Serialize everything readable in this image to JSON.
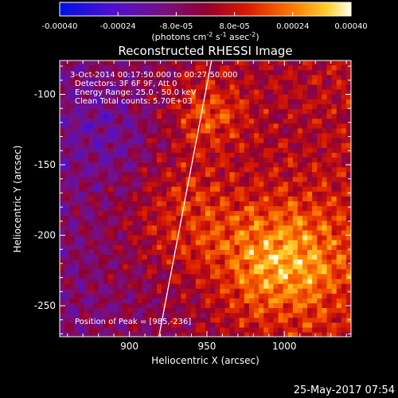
{
  "colorbar": {
    "ticks": [
      "-0.00040",
      "-0.00024",
      "-8.0e-05",
      "8.0e-05",
      "0.00024",
      "0.00040"
    ],
    "units_main": "(photons cm",
    "units_exp1": "-2",
    "units_mid": " s",
    "units_exp2": "-1",
    "units_tail": " asec",
    "units_exp3": "-2",
    "units_close": ")",
    "range": [
      -0.0004,
      0.0004
    ]
  },
  "chart_data": {
    "type": "heatmap",
    "title": "Reconstructed RHESSI Image",
    "xlabel": "Heliocentric X (arcsec)",
    "ylabel": "Heliocentric Y (arcsec)",
    "xlim": [
      855,
      1043
    ],
    "ylim": [
      -272,
      -76
    ],
    "x_ticks": [
      "900",
      "950",
      "1000"
    ],
    "y_ticks": [
      "-100",
      "-150",
      "-200",
      "-250"
    ],
    "x_tick_values": [
      900,
      950,
      1000
    ],
    "y_tick_values": [
      -100,
      -150,
      -200,
      -250
    ],
    "annotations": [
      "3-Oct-2014 00:17:50.000 to 00:27:50.000",
      "Detectors: 3F 6F 9F, Att 0",
      "Energy Range: 25.0 - 50.0 keV",
      "Clean    Total counts: 5.70E+03"
    ],
    "peak_label": "Position of Peak = [985,-236]",
    "limb_line": {
      "x": [
        919,
        953
      ],
      "y": [
        -272,
        -76
      ]
    }
  },
  "footer": {
    "timestamp": "25-May-2017 07:54"
  }
}
